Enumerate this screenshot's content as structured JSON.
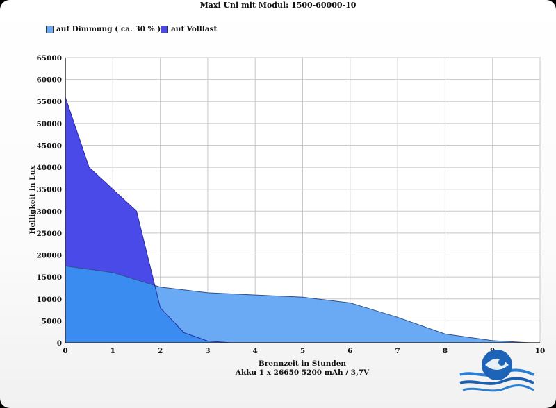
{
  "chart_data": {
    "type": "area",
    "title": "Maxi Uni mit Modul: 1500-60000-10",
    "xlabel": "Brennzeit in Stunden",
    "xlabel2": "Akku 1 x 26650 5200 mAh / 3,7V",
    "ylabel": "Helligkeit in Lux",
    "xlim": [
      0,
      10
    ],
    "ylim": [
      0,
      65000
    ],
    "x_ticks": [
      "0",
      "1",
      "2",
      "3",
      "4",
      "5",
      "6",
      "7",
      "8",
      "9",
      "10"
    ],
    "y_ticks": [
      "0",
      "5000",
      "10000",
      "15000",
      "20000",
      "25000",
      "30000",
      "35000",
      "40000",
      "45000",
      "50000",
      "55000",
      "60000",
      "65000"
    ],
    "grid": true,
    "legend_position": "top-left",
    "series": [
      {
        "name": "auf Dimmung ( ca. 30 % )",
        "color": "#6aaaf4",
        "x": [
          0,
          1,
          2,
          3,
          4,
          5,
          6,
          7,
          8,
          9,
          9.8
        ],
        "y": [
          17500,
          16000,
          12700,
          11400,
          10900,
          10400,
          9100,
          5800,
          2000,
          500,
          0
        ]
      },
      {
        "name": "auf Volllast",
        "color": "#4a4ae8",
        "x": [
          0,
          0.5,
          1,
          1.5,
          2,
          2.5,
          3,
          3.5
        ],
        "y": [
          56000,
          40000,
          35000,
          30000,
          8000,
          2300,
          400,
          0
        ]
      }
    ]
  },
  "overlap_color": "#3a8cf0",
  "legend": {
    "item1": "auf Dimmung ( ca. 30 % )",
    "item2": "auf Volllast",
    "color1": "#6aaaf4",
    "color2": "#4a4ae8"
  },
  "logo": {
    "icon": "diver-logo-icon"
  }
}
